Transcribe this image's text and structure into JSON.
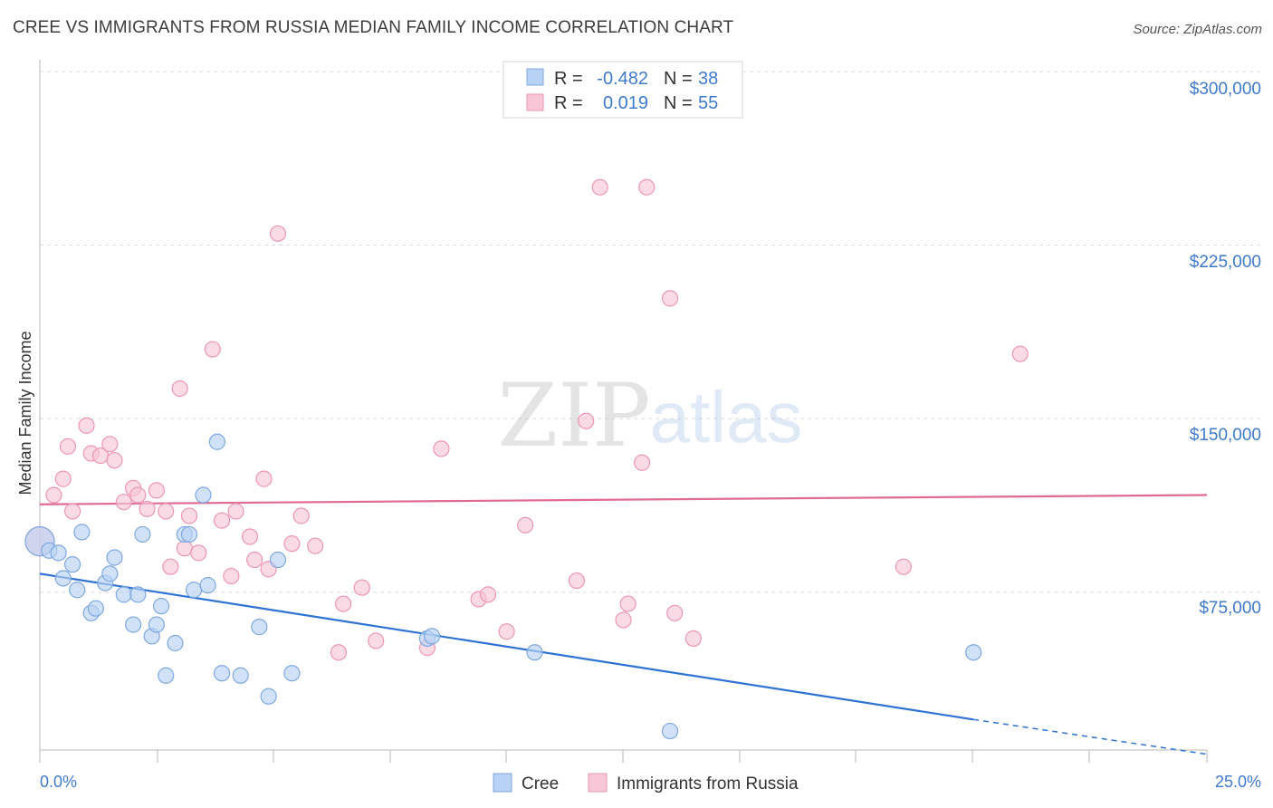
{
  "title": "CREE VS IMMIGRANTS FROM RUSSIA MEDIAN FAMILY INCOME CORRELATION CHART",
  "source": "Source: ZipAtlas.com",
  "watermark": {
    "zip": "ZIP",
    "atlas": "atlas"
  },
  "colors": {
    "cree_fill": "#b8d2f5",
    "cree_stroke": "#7ea8e0",
    "cree_line": "#2e73d2",
    "russia_fill": "#f8c6d6",
    "russia_stroke": "#ec97b2",
    "russia_line": "#e06a92",
    "axis_text": "#3f7acb",
    "grid": "#dcdcdc"
  },
  "legend": {
    "rows": [
      {
        "r_label": "R =",
        "r_value": "-0.482",
        "n_label": "N =",
        "n_value": "38"
      },
      {
        "r_label": "R =",
        "r_value": "0.019",
        "n_label": "N =",
        "n_value": "55"
      }
    ]
  },
  "bottom_legend": [
    "Cree",
    "Immigrants from Russia"
  ],
  "chart_data": {
    "type": "scatter",
    "xlabel": "",
    "ylabel": "Median Family Income",
    "x_tick_labels": [
      "0.0%",
      "25.0%"
    ],
    "y_tick_labels": [
      "$75,000",
      "$150,000",
      "$225,000",
      "$300,000"
    ],
    "xlim": [
      0,
      25
    ],
    "ylim": [
      0,
      300000
    ],
    "grid": true,
    "series": [
      {
        "name": "Cree",
        "trend": {
          "x0": 0,
          "y0": 83000,
          "x1": 20,
          "y1": 20000,
          "dashed_to_x": 25,
          "dashed_to_y": 5000
        },
        "points": [
          [
            0.0,
            97000
          ],
          [
            0.2,
            93000
          ],
          [
            0.4,
            92000
          ],
          [
            0.5,
            81000
          ],
          [
            0.7,
            87000
          ],
          [
            0.8,
            76000
          ],
          [
            0.9,
            101000
          ],
          [
            1.1,
            66000
          ],
          [
            1.2,
            68000
          ],
          [
            1.4,
            79000
          ],
          [
            1.5,
            83000
          ],
          [
            1.6,
            90000
          ],
          [
            1.8,
            74000
          ],
          [
            2.0,
            61000
          ],
          [
            2.1,
            74000
          ],
          [
            2.2,
            100000
          ],
          [
            2.4,
            56000
          ],
          [
            2.5,
            61000
          ],
          [
            2.6,
            69000
          ],
          [
            2.7,
            39000
          ],
          [
            2.9,
            53000
          ],
          [
            3.1,
            100000
          ],
          [
            3.2,
            100000
          ],
          [
            3.3,
            76000
          ],
          [
            3.5,
            117000
          ],
          [
            3.6,
            78000
          ],
          [
            3.8,
            140000
          ],
          [
            3.9,
            40000
          ],
          [
            4.3,
            39000
          ],
          [
            4.7,
            60000
          ],
          [
            4.9,
            30000
          ],
          [
            5.1,
            89000
          ],
          [
            5.4,
            40000
          ],
          [
            8.3,
            55000
          ],
          [
            8.4,
            56000
          ],
          [
            10.6,
            49000
          ],
          [
            13.5,
            15000
          ],
          [
            20.0,
            49000
          ]
        ]
      },
      {
        "name": "Immigrants from Russia",
        "trend": {
          "x0": 0,
          "y0": 113000,
          "x1": 25,
          "y1": 117000
        },
        "points": [
          [
            0.0,
            97000
          ],
          [
            0.3,
            117000
          ],
          [
            0.5,
            124000
          ],
          [
            0.7,
            110000
          ],
          [
            0.6,
            138000
          ],
          [
            1.0,
            147000
          ],
          [
            1.1,
            135000
          ],
          [
            1.3,
            134000
          ],
          [
            1.5,
            139000
          ],
          [
            1.6,
            132000
          ],
          [
            1.8,
            114000
          ],
          [
            2.0,
            120000
          ],
          [
            2.1,
            117000
          ],
          [
            2.3,
            111000
          ],
          [
            2.5,
            119000
          ],
          [
            2.7,
            110000
          ],
          [
            2.8,
            86000
          ],
          [
            3.0,
            163000
          ],
          [
            3.1,
            94000
          ],
          [
            3.2,
            108000
          ],
          [
            3.4,
            92000
          ],
          [
            3.7,
            180000
          ],
          [
            3.9,
            106000
          ],
          [
            4.1,
            82000
          ],
          [
            4.2,
            110000
          ],
          [
            4.5,
            99000
          ],
          [
            4.6,
            89000
          ],
          [
            4.8,
            124000
          ],
          [
            4.9,
            85000
          ],
          [
            5.1,
            230000
          ],
          [
            5.4,
            96000
          ],
          [
            5.6,
            108000
          ],
          [
            5.9,
            95000
          ],
          [
            6.4,
            49000
          ],
          [
            6.5,
            70000
          ],
          [
            6.9,
            77000
          ],
          [
            7.2,
            54000
          ],
          [
            8.3,
            51000
          ],
          [
            8.6,
            137000
          ],
          [
            9.4,
            72000
          ],
          [
            9.6,
            74000
          ],
          [
            10.0,
            58000
          ],
          [
            10.4,
            104000
          ],
          [
            11.5,
            80000
          ],
          [
            11.7,
            149000
          ],
          [
            12.0,
            250000
          ],
          [
            12.5,
            63000
          ],
          [
            12.6,
            70000
          ],
          [
            12.9,
            131000
          ],
          [
            13.0,
            250000
          ],
          [
            13.5,
            202000
          ],
          [
            13.6,
            66000
          ],
          [
            14.0,
            55000
          ],
          [
            18.5,
            86000
          ],
          [
            21.0,
            178000
          ]
        ]
      }
    ]
  }
}
